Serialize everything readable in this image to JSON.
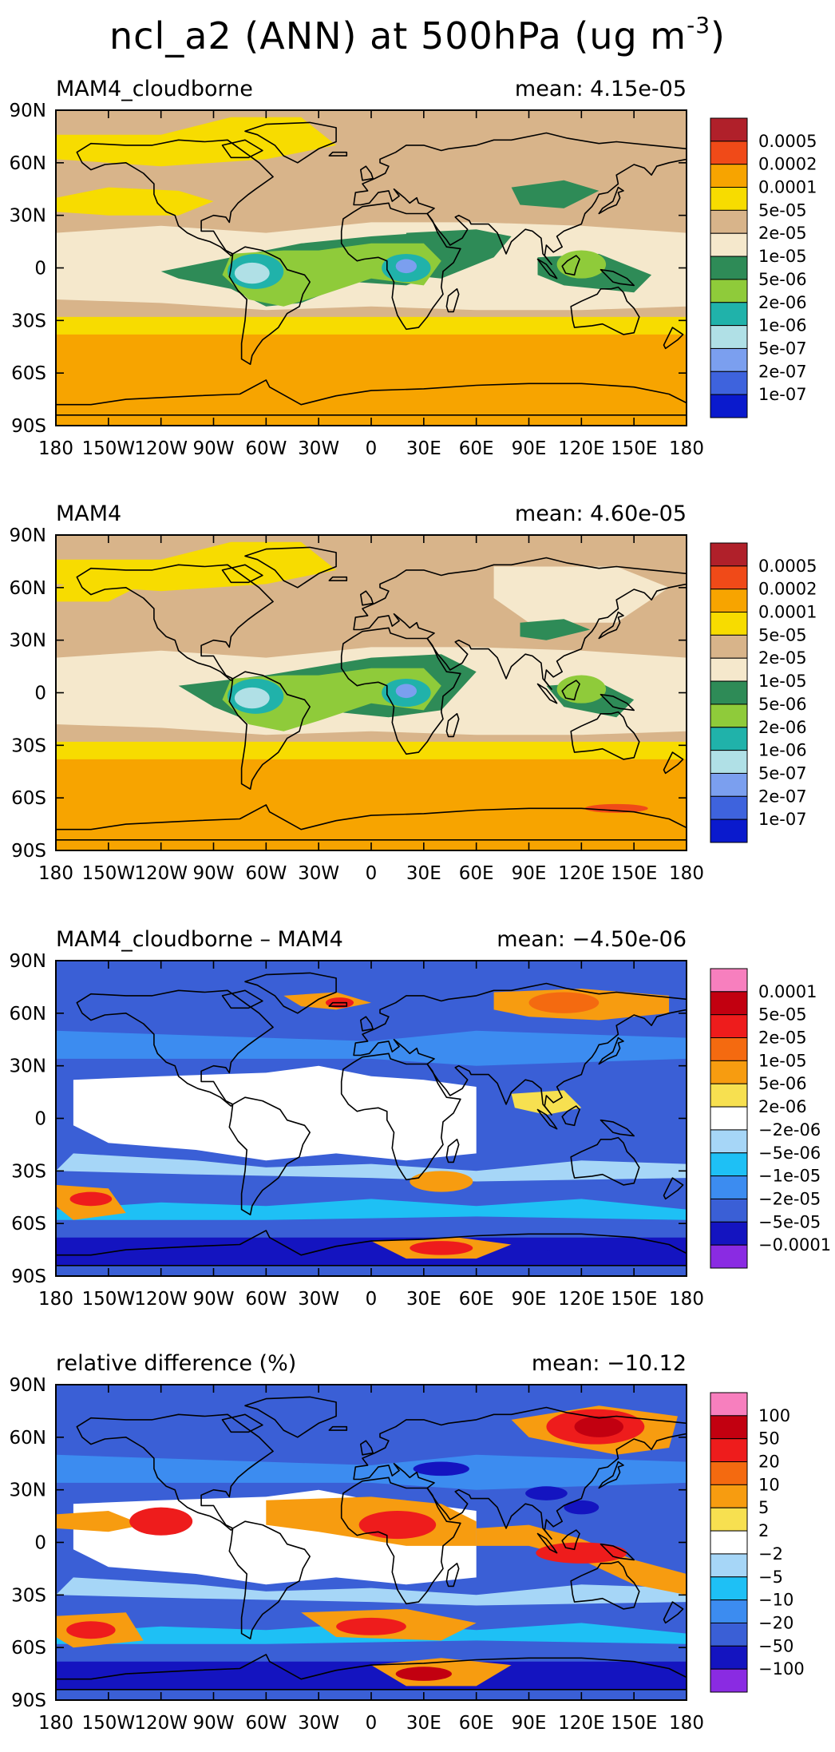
{
  "figure": {
    "title_main": "ncl_a2 (ANN) at 500hPa (ug m",
    "title_unit_exponent": "-3",
    "title_close": ")"
  },
  "x_ticks": [
    "180",
    "150W",
    "120W",
    "90W",
    "60W",
    "30W",
    "0",
    "30E",
    "60E",
    "90E",
    "120E",
    "150E",
    "180"
  ],
  "y_ticks": [
    "90N",
    "60N",
    "30N",
    "0",
    "30S",
    "60S",
    "90S"
  ],
  "panels": [
    {
      "id": "cloudborne",
      "label": "MAM4_cloudborne",
      "mean_text": "mean: 4.15e-05",
      "colorbar_labels": [
        "0.0005",
        "0.0002",
        "0.0001",
        "5e-05",
        "2e-05",
        "1e-05",
        "5e-06",
        "2e-06",
        "1e-06",
        "5e-07",
        "2e-07",
        "1e-07"
      ],
      "colorbar_colors": [
        "#b0202a",
        "#f04a18",
        "#f7a400",
        "#f7dc00",
        "#d8b48a",
        "#f5e8cc",
        "#2e8b57",
        "#8fcb3a",
        "#20b2aa",
        "#b0e0e6",
        "#7b9fef",
        "#3e63dd",
        "#0a1acd"
      ]
    },
    {
      "id": "mam4",
      "label": "MAM4",
      "mean_text": "mean: 4.60e-05",
      "colorbar_labels": [
        "0.0005",
        "0.0002",
        "0.0001",
        "5e-05",
        "2e-05",
        "1e-05",
        "5e-06",
        "2e-06",
        "1e-06",
        "5e-07",
        "2e-07",
        "1e-07"
      ],
      "colorbar_colors": [
        "#b0202a",
        "#f04a18",
        "#f7a400",
        "#f7dc00",
        "#d8b48a",
        "#f5e8cc",
        "#2e8b57",
        "#8fcb3a",
        "#20b2aa",
        "#b0e0e6",
        "#7b9fef",
        "#3e63dd",
        "#0a1acd"
      ]
    },
    {
      "id": "diff",
      "label": "MAM4_cloudborne – MAM4",
      "mean_text": "mean: −4.50e-06",
      "colorbar_labels": [
        "0.0001",
        "5e-05",
        "2e-05",
        "1e-05",
        "5e-06",
        "2e-06",
        "−2e-06",
        "−5e-06",
        "−1e-05",
        "−2e-05",
        "−5e-05",
        "−0.0001"
      ],
      "colorbar_colors": [
        "#f77fbe",
        "#c20010",
        "#ee1c1c",
        "#f46a10",
        "#f79c10",
        "#f7e050",
        "#ffffff",
        "#a6d6f7",
        "#1ec0f5",
        "#3c8cf0",
        "#3a5fd6",
        "#1414c0",
        "#8a2be2"
      ]
    },
    {
      "id": "reldiff",
      "label": "relative difference (%)",
      "mean_text": "mean: −10.12",
      "colorbar_labels": [
        "100",
        "50",
        "20",
        "10",
        "5",
        "2",
        "−2",
        "−5",
        "−10",
        "−20",
        "−50",
        "−100"
      ],
      "colorbar_colors": [
        "#f77fbe",
        "#c20010",
        "#ee1c1c",
        "#f46a10",
        "#f79c10",
        "#f7e050",
        "#ffffff",
        "#a6d6f7",
        "#1ec0f5",
        "#3c8cf0",
        "#3a5fd6",
        "#1414c0",
        "#8a2be2"
      ]
    }
  ]
}
